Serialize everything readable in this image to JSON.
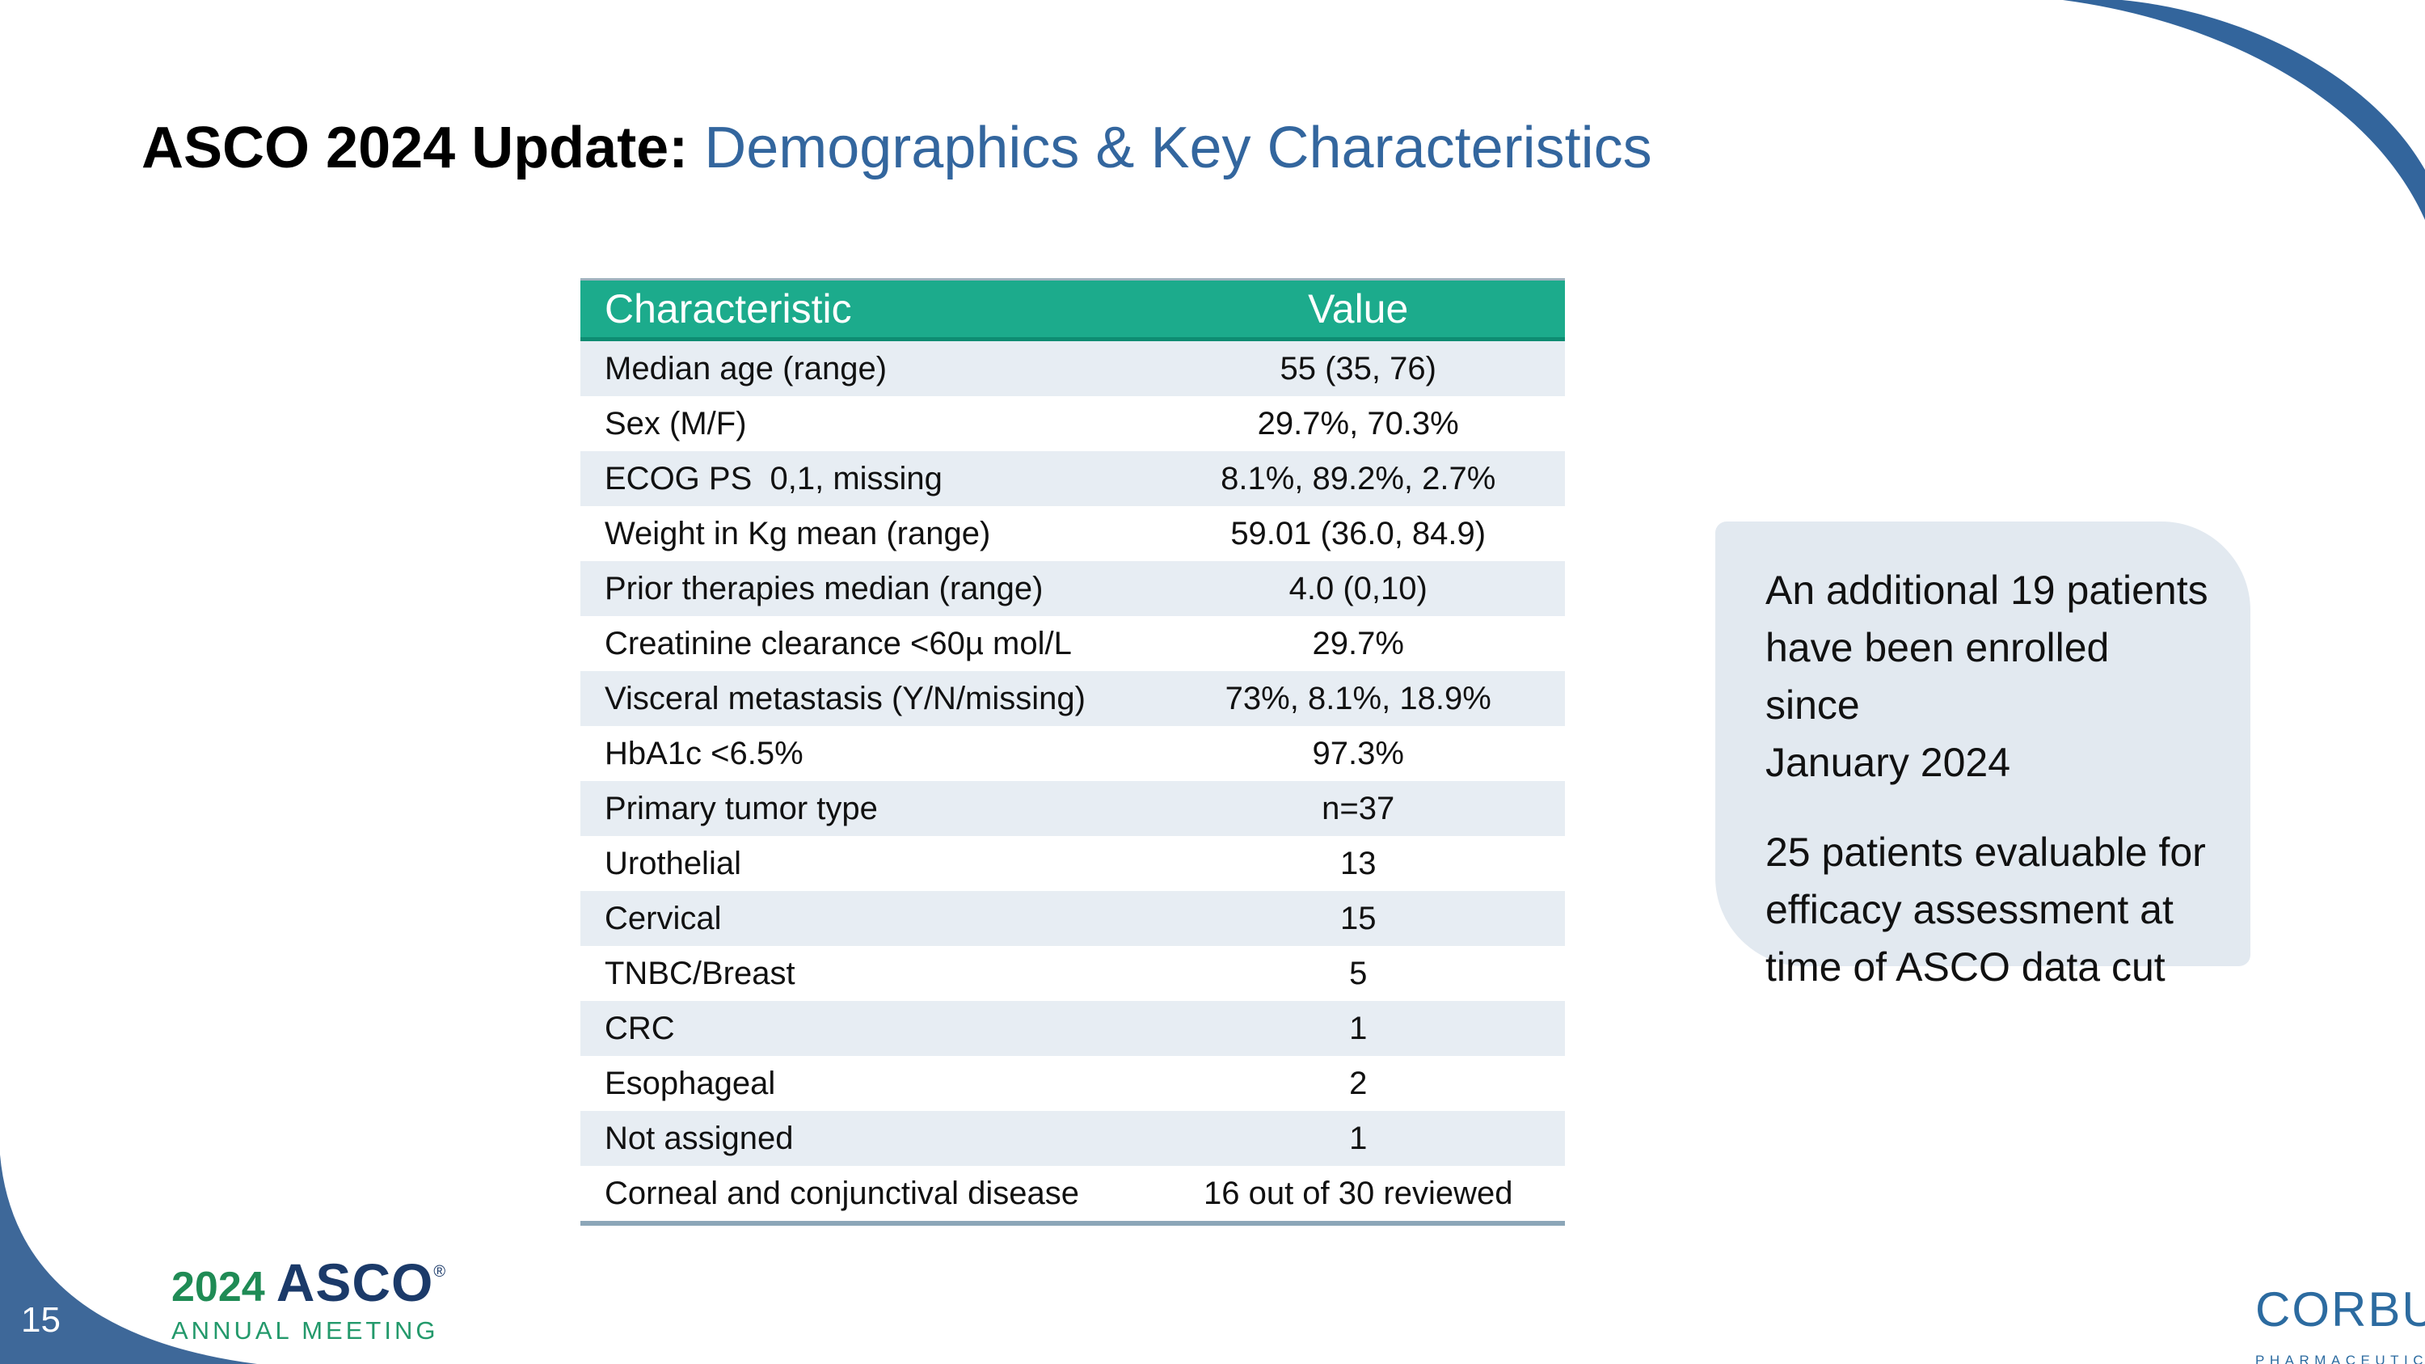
{
  "slide": {
    "title_black": "ASCO 2024 Update: ",
    "title_blue": "Demographics & Key Characteristics",
    "page_number": "15"
  },
  "table": {
    "headers": [
      "Characteristic",
      "Value"
    ],
    "rows": [
      {
        "label": "Median age (range)",
        "value": "55 (35, 76)"
      },
      {
        "label": "Sex (M/F)",
        "value": "29.7%, 70.3%"
      },
      {
        "label": "ECOG PS  0,1, missing",
        "value": "8.1%, 89.2%, 2.7%"
      },
      {
        "label": "Weight in Kg mean (range)",
        "value": "59.01 (36.0, 84.9)"
      },
      {
        "label": "Prior therapies median (range)",
        "value": "4.0 (0,10)"
      },
      {
        "label": "Creatinine clearance <60µ mol/L",
        "value": "29.7%"
      },
      {
        "label": "Visceral metastasis (Y/N/missing)",
        "value": "73%, 8.1%, 18.9%"
      },
      {
        "label": "HbA1c <6.5%",
        "value": "97.3%"
      },
      {
        "label": "Primary tumor type",
        "value": "n=37"
      },
      {
        "label": "Urothelial",
        "value": "13"
      },
      {
        "label": "Cervical",
        "value": "15"
      },
      {
        "label": "TNBC/Breast",
        "value": "5"
      },
      {
        "label": "CRC",
        "value": "1"
      },
      {
        "label": "Esophageal",
        "value": "2"
      },
      {
        "label": "Not assigned",
        "value": "1"
      },
      {
        "label": "Corneal and conjunctival disease",
        "value": "16 out of 30 reviewed"
      }
    ]
  },
  "callout": {
    "paragraph1": "An additional 19 patients\nhave been enrolled since\nJanuary 2024",
    "paragraph2": "25 patients evaluable for\nefficacy assessment at\ntime of ASCO data cut"
  },
  "footer": {
    "asco_logo": {
      "year": "2024",
      "name": "ASCO",
      "registered": "®",
      "subtitle": "ANNUAL MEETING"
    },
    "corbus_logo": {
      "name": "CORBUS",
      "tm": "™",
      "subtitle": "PHARMACEUTICALS"
    }
  },
  "colors": {
    "header_green": "#1CAB8C",
    "header_green_dark": "#0E8C72",
    "row_shaded": "#E7EDF3",
    "table_bottom_line": "#8CA6B8",
    "title_blue": "#33669E",
    "corner_blue": "#3A669A",
    "callout_bg": "#E2E9F0",
    "asco_green": "#1F8B55",
    "asco_navy": "#1B3A69",
    "corbus_blue": "#2C6BA0",
    "corbus_lightblue": "#6FB3DC",
    "corbus_green": "#8DC63F"
  }
}
